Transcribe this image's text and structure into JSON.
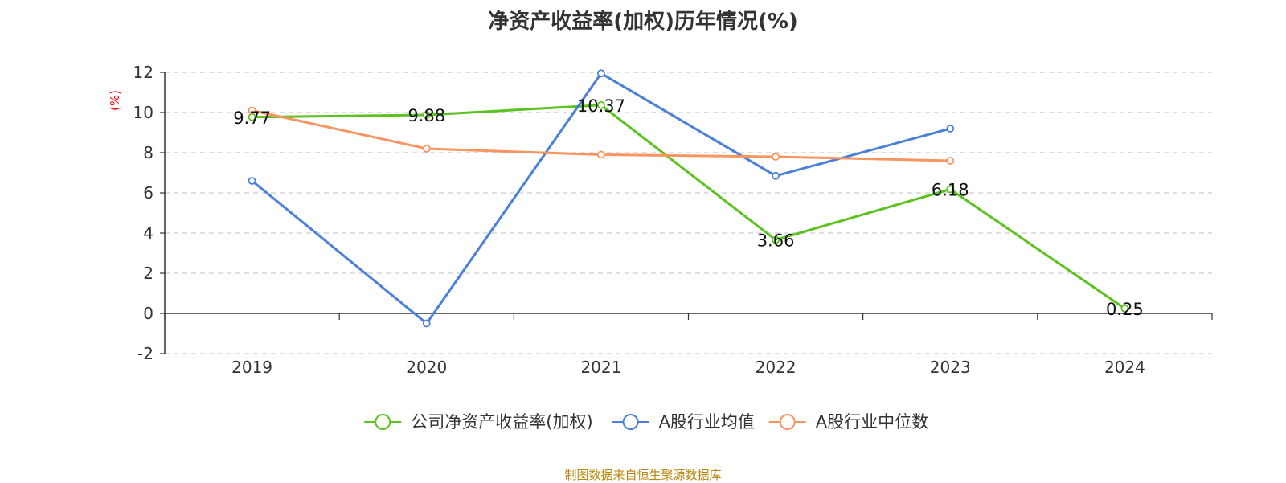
{
  "chart_data": {
    "type": "line",
    "title": "净资产收益率(加权)历年情况(%)",
    "ylabel": "(%)",
    "xlabel": "",
    "categories": [
      "2019",
      "2020",
      "2021",
      "2022",
      "2023",
      "2024"
    ],
    "ylim": [
      -2,
      12
    ],
    "yticks": [
      -2,
      0,
      2,
      4,
      6,
      8,
      10,
      12
    ],
    "grid": true,
    "legend_position": "bottom",
    "series": [
      {
        "name": "公司净资产收益率(加权)",
        "color": "#5bc21f",
        "values": [
          9.77,
          9.88,
          10.37,
          3.66,
          6.18,
          0.25
        ],
        "show_labels": true
      },
      {
        "name": "A股行业均值",
        "color": "#4a7fdc",
        "values": [
          6.6,
          -0.5,
          11.95,
          6.85,
          9.2,
          null
        ],
        "show_labels": false
      },
      {
        "name": "A股行业中位数",
        "color": "#f89460",
        "values": [
          10.1,
          8.2,
          7.9,
          7.8,
          7.6,
          null
        ],
        "show_labels": false
      }
    ]
  },
  "footer": "制图数据来自恒生聚源数据库"
}
